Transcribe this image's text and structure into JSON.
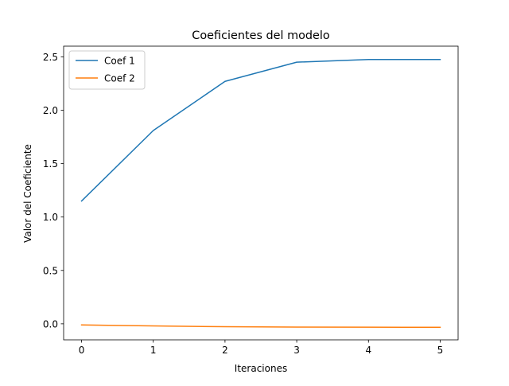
{
  "chart_data": {
    "type": "line",
    "title": "Coeficientes del modelo",
    "xlabel": "Iteraciones",
    "ylabel": "Valor del Coeficiente",
    "x": [
      0,
      1,
      2,
      3,
      4,
      5
    ],
    "xticks": [
      "0",
      "1",
      "2",
      "3",
      "4",
      "5"
    ],
    "yticks": [
      "0.0",
      "0.5",
      "1.0",
      "1.5",
      "2.0",
      "2.5"
    ],
    "xlim": [
      -0.25,
      5.25
    ],
    "ylim": [
      -0.15,
      2.6
    ],
    "grid": false,
    "legend_position": "upper-left",
    "series": [
      {
        "name": "Coef 1",
        "color": "#1f77b4",
        "values": [
          1.15,
          1.81,
          2.27,
          2.45,
          2.475,
          2.475
        ]
      },
      {
        "name": "Coef 2",
        "color": "#ff7f0e",
        "values": [
          -0.01,
          -0.02,
          -0.027,
          -0.031,
          -0.032,
          -0.033
        ]
      }
    ]
  }
}
